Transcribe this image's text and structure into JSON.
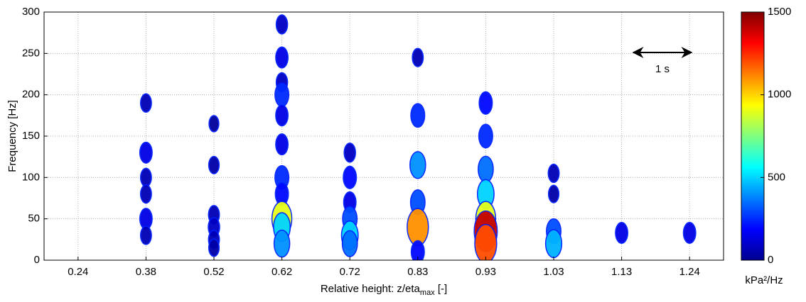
{
  "chart_data": {
    "type": "contour",
    "ylabel": "Frequency [Hz]",
    "xlabel": "Relative height:   z/eta",
    "xlabel_sub": "max",
    "xlabel_end": " [-]",
    "categories": [
      "0.24",
      "0.38",
      "0.52",
      "0.62",
      "0.72",
      "0.83",
      "0.93",
      "1.03",
      "1.13",
      "1.24"
    ],
    "ylim": [
      0,
      300
    ],
    "yticks": [
      0,
      50,
      100,
      150,
      200,
      250,
      300
    ],
    "grid": true,
    "colorbar": {
      "label": "kPa²/Hz",
      "lim": [
        0,
        1500
      ],
      "ticks": [
        0,
        500,
        1000,
        1500
      ],
      "colormap": "jet"
    },
    "annotation": "1 s",
    "spots": {
      "x": [
        1,
        1,
        1,
        1,
        1,
        1,
        2,
        2,
        2,
        2,
        2,
        2,
        3,
        3,
        3,
        3,
        3,
        3,
        3,
        3,
        3,
        3,
        3,
        4,
        4,
        4,
        4,
        4,
        4,
        5,
        5,
        5,
        5,
        5,
        5,
        6,
        6,
        6,
        6,
        6,
        6,
        6,
        7,
        7,
        7,
        7,
        8,
        9
      ],
      "y": [
        190,
        130,
        100,
        80,
        50,
        30,
        165,
        115,
        55,
        40,
        25,
        15,
        285,
        245,
        215,
        200,
        175,
        140,
        100,
        80,
        50,
        40,
        20,
        130,
        100,
        70,
        50,
        30,
        20,
        245,
        175,
        115,
        70,
        40,
        10,
        190,
        150,
        110,
        80,
        50,
        35,
        20,
        105,
        80,
        35,
        20,
        33,
        33
      ],
      "values": [
        80,
        150,
        80,
        80,
        150,
        80,
        40,
        60,
        80,
        100,
        80,
        60,
        100,
        150,
        100,
        250,
        150,
        150,
        250,
        200,
        900,
        500,
        400,
        100,
        200,
        150,
        300,
        500,
        350,
        80,
        250,
        400,
        300,
        1100,
        200,
        200,
        250,
        350,
        500,
        900,
        1400,
        1200,
        80,
        60,
        300,
        450,
        150,
        150
      ]
    }
  }
}
